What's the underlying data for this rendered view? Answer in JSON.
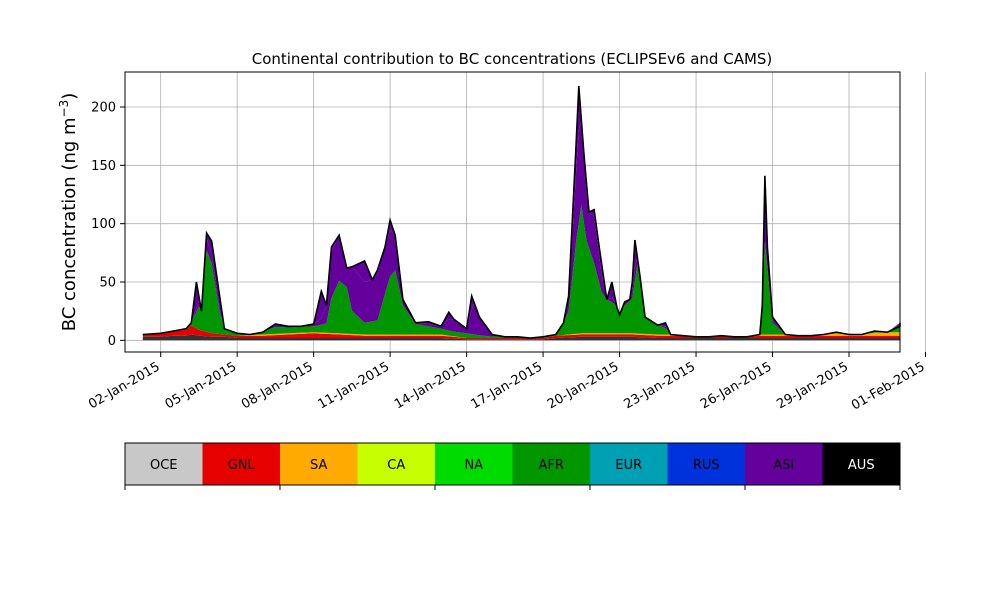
{
  "chart_data": {
    "type": "area",
    "title": "Continental contribution to BC concentrations (ECLIPSEv6 and CAMS)",
    "ylabel": "BC concentration (ng m",
    "ylabel_sup": "−3",
    "ylabel_close": ")",
    "ylim": [
      -10,
      230
    ],
    "xlim": [
      0.6,
      31.0
    ],
    "yticks": [
      0,
      50,
      100,
      150,
      200
    ],
    "grid": true,
    "x_unit": "day of January 2015",
    "xticks": [
      {
        "day": 2,
        "label": "02-Jan-2015"
      },
      {
        "day": 5,
        "label": "05-Jan-2015"
      },
      {
        "day": 8,
        "label": "08-Jan-2015"
      },
      {
        "day": 11,
        "label": "11-Jan-2015"
      },
      {
        "day": 14,
        "label": "14-Jan-2015"
      },
      {
        "day": 17,
        "label": "17-Jan-2015"
      },
      {
        "day": 20,
        "label": "20-Jan-2015"
      },
      {
        "day": 23,
        "label": "23-Jan-2015"
      },
      {
        "day": 26,
        "label": "26-Jan-2015"
      },
      {
        "day": 29,
        "label": "29-Jan-2015"
      },
      {
        "day": 32,
        "label": "01-Feb-2015"
      }
    ],
    "regions": [
      "OCE",
      "GNL",
      "SA",
      "CA",
      "NA",
      "AFR",
      "EUR",
      "RUS",
      "ASI",
      "AUS"
    ],
    "colors": {
      "OCE": "#c8c8c8",
      "GNL": "#e60000",
      "SA": "#ffaa00",
      "CA": "#c8ff00",
      "NA": "#00dc00",
      "AFR": "#009600",
      "EUR": "#00a0b4",
      "RUS": "#0032dc",
      "ASI": "#64009b",
      "AUS": "#000000"
    },
    "series": [
      {
        "key": "base",
        "points": [
          [
            1.3,
            3
          ],
          [
            2.0,
            3
          ],
          [
            2.5,
            4
          ],
          [
            3.0,
            4
          ],
          [
            3.2,
            5
          ],
          [
            3.5,
            4
          ],
          [
            4.0,
            3
          ],
          [
            4.5,
            3
          ],
          [
            5.0,
            2
          ],
          [
            6.0,
            2
          ],
          [
            7.0,
            2
          ],
          [
            8.0,
            2
          ],
          [
            9.0,
            2
          ],
          [
            10.0,
            2
          ],
          [
            11.0,
            2
          ],
          [
            12.0,
            2
          ],
          [
            13.0,
            2
          ],
          [
            14.0,
            1
          ],
          [
            15.0,
            1
          ],
          [
            16.0,
            1
          ],
          [
            17.0,
            1
          ],
          [
            17.5,
            2
          ],
          [
            18.5,
            3
          ],
          [
            19.5,
            3
          ],
          [
            20.5,
            3
          ],
          [
            21.5,
            2
          ],
          [
            22.5,
            2
          ],
          [
            23.5,
            2
          ],
          [
            24.5,
            2
          ],
          [
            25.5,
            2
          ],
          [
            26.5,
            2
          ],
          [
            27.5,
            2
          ],
          [
            28.5,
            2
          ],
          [
            29.5,
            2
          ],
          [
            30.5,
            2
          ],
          [
            31.0,
            2
          ]
        ]
      },
      {
        "key": "gnl",
        "points": [
          [
            1.3,
            2
          ],
          [
            2.0,
            3
          ],
          [
            2.5,
            4
          ],
          [
            3.0,
            5
          ],
          [
            3.2,
            8
          ],
          [
            3.5,
            5
          ],
          [
            4.0,
            3
          ],
          [
            4.5,
            2
          ],
          [
            5.0,
            2
          ],
          [
            6.0,
            2
          ],
          [
            7.0,
            3
          ],
          [
            8.0,
            4
          ],
          [
            9.0,
            3
          ],
          [
            10.0,
            2
          ],
          [
            11.0,
            2
          ],
          [
            12.0,
            2
          ],
          [
            13.0,
            2
          ],
          [
            14.0,
            1
          ],
          [
            15.0,
            1
          ],
          [
            16.0,
            1
          ],
          [
            17.0,
            1
          ],
          [
            17.5,
            2
          ],
          [
            18.5,
            2
          ],
          [
            19.5,
            2
          ],
          [
            20.5,
            2
          ],
          [
            21.5,
            2
          ],
          [
            22.5,
            2
          ],
          [
            23.5,
            2
          ],
          [
            24.5,
            2
          ],
          [
            25.5,
            2
          ],
          [
            26.5,
            2
          ],
          [
            27.5,
            2
          ],
          [
            28.5,
            2
          ],
          [
            29.5,
            2
          ],
          [
            30.5,
            2
          ],
          [
            31.0,
            2
          ]
        ]
      },
      {
        "key": "sa",
        "points": [
          [
            1.3,
            0
          ],
          [
            2.0,
            0
          ],
          [
            2.5,
            0
          ],
          [
            3.0,
            0
          ],
          [
            3.2,
            0
          ],
          [
            3.5,
            0
          ],
          [
            4.0,
            0
          ],
          [
            4.5,
            0
          ],
          [
            5.0,
            0
          ],
          [
            6.0,
            1
          ],
          [
            7.0,
            1
          ],
          [
            8.0,
            1
          ],
          [
            9.0,
            1
          ],
          [
            10.0,
            1
          ],
          [
            11.0,
            1
          ],
          [
            12.0,
            1
          ],
          [
            13.0,
            1
          ],
          [
            14.0,
            0
          ],
          [
            15.0,
            0
          ],
          [
            16.0,
            0
          ],
          [
            17.0,
            0
          ],
          [
            17.5,
            0
          ],
          [
            18.5,
            1
          ],
          [
            19.5,
            1
          ],
          [
            20.5,
            1
          ],
          [
            21.5,
            1
          ],
          [
            22.5,
            1
          ],
          [
            23.5,
            1
          ],
          [
            24.5,
            1
          ],
          [
            25.5,
            1
          ],
          [
            26.5,
            1
          ],
          [
            27.5,
            1
          ],
          [
            28.5,
            2
          ],
          [
            29.5,
            2
          ],
          [
            30.5,
            3
          ],
          [
            31.0,
            3
          ]
        ]
      },
      {
        "key": "afr",
        "points": [
          [
            1.3,
            0
          ],
          [
            2.0,
            0
          ],
          [
            2.5,
            0
          ],
          [
            3.0,
            1
          ],
          [
            3.2,
            2
          ],
          [
            3.5,
            20
          ],
          [
            3.6,
            45
          ],
          [
            3.8,
            70
          ],
          [
            4.0,
            60
          ],
          [
            4.3,
            20
          ],
          [
            4.5,
            5
          ],
          [
            5.0,
            2
          ],
          [
            6.0,
            3
          ],
          [
            6.5,
            6
          ],
          [
            7.0,
            5
          ],
          [
            7.5,
            5
          ],
          [
            8.0,
            5
          ],
          [
            8.5,
            8
          ],
          [
            8.7,
            30
          ],
          [
            9.0,
            45
          ],
          [
            9.3,
            40
          ],
          [
            9.5,
            20
          ],
          [
            10.0,
            10
          ],
          [
            10.5,
            12
          ],
          [
            11.0,
            50
          ],
          [
            11.2,
            55
          ],
          [
            11.5,
            25
          ],
          [
            12.0,
            9
          ],
          [
            13.0,
            5
          ],
          [
            13.5,
            4
          ],
          [
            14.0,
            4
          ],
          [
            14.3,
            3
          ],
          [
            15.0,
            1
          ],
          [
            16.0,
            1
          ],
          [
            17.0,
            1
          ],
          [
            17.5,
            5
          ],
          [
            18.0,
            20
          ],
          [
            18.3,
            80
          ],
          [
            18.5,
            110
          ],
          [
            18.7,
            80
          ],
          [
            19.0,
            60
          ],
          [
            19.3,
            35
          ],
          [
            19.5,
            30
          ],
          [
            19.8,
            25
          ],
          [
            20.0,
            20
          ],
          [
            20.5,
            30
          ],
          [
            20.7,
            60
          ],
          [
            21.0,
            20
          ],
          [
            21.5,
            8
          ],
          [
            22.0,
            4
          ],
          [
            23.0,
            2
          ],
          [
            24.0,
            2
          ],
          [
            25.0,
            2
          ],
          [
            25.5,
            40
          ],
          [
            25.7,
            80
          ],
          [
            26.0,
            10
          ],
          [
            26.5,
            2
          ],
          [
            27.0,
            2
          ],
          [
            28.0,
            3
          ],
          [
            29.0,
            3
          ],
          [
            30.0,
            4
          ],
          [
            30.5,
            4
          ],
          [
            31.0,
            5
          ]
        ]
      },
      {
        "key": "asi",
        "points": [
          [
            1.3,
            0
          ],
          [
            2.0,
            0
          ],
          [
            2.5,
            0
          ],
          [
            3.0,
            0
          ],
          [
            3.2,
            0
          ],
          [
            3.5,
            5
          ],
          [
            3.6,
            10
          ],
          [
            3.8,
            10
          ],
          [
            4.0,
            8
          ],
          [
            4.3,
            3
          ],
          [
            4.5,
            0
          ],
          [
            5.0,
            0
          ],
          [
            6.0,
            1
          ],
          [
            6.5,
            2
          ],
          [
            7.0,
            2
          ],
          [
            7.5,
            2
          ],
          [
            8.0,
            3
          ],
          [
            8.3,
            5
          ],
          [
            8.5,
            20
          ],
          [
            8.7,
            40
          ],
          [
            9.0,
            45
          ],
          [
            9.3,
            20
          ],
          [
            9.5,
            40
          ],
          [
            10.0,
            35
          ],
          [
            10.5,
            40
          ],
          [
            11.0,
            40
          ],
          [
            11.2,
            45
          ],
          [
            11.5,
            10
          ],
          [
            12.0,
            2
          ],
          [
            13.0,
            2
          ],
          [
            13.5,
            15
          ],
          [
            14.0,
            3
          ],
          [
            14.3,
            30
          ],
          [
            15.0,
            2
          ],
          [
            16.0,
            0
          ],
          [
            17.0,
            0
          ],
          [
            17.5,
            5
          ],
          [
            18.0,
            10
          ],
          [
            18.3,
            60
          ],
          [
            18.5,
            100
          ],
          [
            18.7,
            40
          ],
          [
            19.0,
            40
          ],
          [
            19.3,
            15
          ],
          [
            19.5,
            5
          ],
          [
            19.8,
            3
          ],
          [
            20.0,
            5
          ],
          [
            20.5,
            5
          ],
          [
            20.7,
            20
          ],
          [
            21.0,
            5
          ],
          [
            21.5,
            2
          ],
          [
            22.0,
            1
          ],
          [
            23.0,
            0
          ],
          [
            24.0,
            0
          ],
          [
            25.0,
            0
          ],
          [
            25.5,
            5
          ],
          [
            25.7,
            55
          ],
          [
            26.0,
            2
          ],
          [
            26.5,
            0
          ],
          [
            27.0,
            0
          ],
          [
            28.0,
            1
          ],
          [
            29.0,
            1
          ],
          [
            30.0,
            1
          ],
          [
            30.5,
            1
          ],
          [
            31.0,
            2
          ]
        ]
      }
    ],
    "total": [
      [
        1.3,
        5
      ],
      [
        2.0,
        6
      ],
      [
        2.5,
        8
      ],
      [
        3.0,
        10
      ],
      [
        3.2,
        15
      ],
      [
        3.4,
        50
      ],
      [
        3.6,
        25
      ],
      [
        3.8,
        92
      ],
      [
        4.0,
        85
      ],
      [
        4.3,
        40
      ],
      [
        4.5,
        10
      ],
      [
        5.0,
        6
      ],
      [
        5.5,
        5
      ],
      [
        6.0,
        7
      ],
      [
        6.5,
        14
      ],
      [
        7.0,
        12
      ],
      [
        7.5,
        12
      ],
      [
        8.0,
        14
      ],
      [
        8.3,
        42
      ],
      [
        8.5,
        30
      ],
      [
        8.7,
        80
      ],
      [
        9.0,
        90
      ],
      [
        9.3,
        62
      ],
      [
        9.5,
        63
      ],
      [
        10.0,
        68
      ],
      [
        10.3,
        52
      ],
      [
        10.5,
        60
      ],
      [
        10.8,
        80
      ],
      [
        11.0,
        103
      ],
      [
        11.2,
        90
      ],
      [
        11.5,
        35
      ],
      [
        12.0,
        15
      ],
      [
        12.5,
        16
      ],
      [
        13.0,
        12
      ],
      [
        13.3,
        24
      ],
      [
        13.5,
        18
      ],
      [
        14.0,
        10
      ],
      [
        14.2,
        38
      ],
      [
        14.5,
        20
      ],
      [
        15.0,
        5
      ],
      [
        15.5,
        3
      ],
      [
        16.0,
        3
      ],
      [
        16.5,
        2
      ],
      [
        17.0,
        3
      ],
      [
        17.5,
        5
      ],
      [
        17.8,
        15
      ],
      [
        18.0,
        38
      ],
      [
        18.3,
        170
      ],
      [
        18.4,
        218
      ],
      [
        18.6,
        160
      ],
      [
        18.8,
        110
      ],
      [
        19.0,
        112
      ],
      [
        19.2,
        80
      ],
      [
        19.5,
        35
      ],
      [
        19.7,
        50
      ],
      [
        19.9,
        28
      ],
      [
        20.0,
        22
      ],
      [
        20.2,
        33
      ],
      [
        20.4,
        35
      ],
      [
        20.5,
        50
      ],
      [
        20.6,
        86
      ],
      [
        20.8,
        55
      ],
      [
        21.0,
        20
      ],
      [
        21.5,
        13
      ],
      [
        21.8,
        15
      ],
      [
        22.0,
        5
      ],
      [
        22.5,
        4
      ],
      [
        23.0,
        3
      ],
      [
        23.5,
        3
      ],
      [
        24.0,
        4
      ],
      [
        24.5,
        3
      ],
      [
        25.0,
        3
      ],
      [
        25.5,
        5
      ],
      [
        25.6,
        30
      ],
      [
        25.7,
        141
      ],
      [
        25.8,
        80
      ],
      [
        26.0,
        20
      ],
      [
        26.5,
        5
      ],
      [
        27.0,
        4
      ],
      [
        27.5,
        4
      ],
      [
        28.0,
        5
      ],
      [
        28.5,
        7
      ],
      [
        29.0,
        5
      ],
      [
        29.5,
        5
      ],
      [
        30.0,
        8
      ],
      [
        30.5,
        7
      ],
      [
        31.0,
        12
      ],
      [
        31.0,
        15
      ]
    ],
    "colorbar_ticks": [
      0,
      2,
      4,
      6,
      8,
      10
    ]
  }
}
